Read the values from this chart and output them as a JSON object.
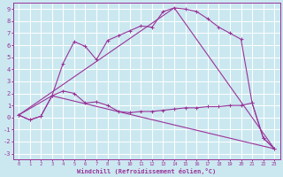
{
  "xlabel": "Windchill (Refroidissement éolien,°C)",
  "bg_color": "#cbe8f0",
  "grid_color": "#ffffff",
  "line_color": "#993399",
  "xlim": [
    -0.5,
    23.5
  ],
  "ylim": [
    -3.5,
    9.5
  ],
  "xticks": [
    0,
    1,
    2,
    3,
    4,
    5,
    6,
    7,
    8,
    9,
    10,
    11,
    12,
    13,
    14,
    15,
    16,
    17,
    18,
    19,
    20,
    21,
    22,
    23
  ],
  "yticks": [
    -3,
    -2,
    -1,
    0,
    1,
    2,
    3,
    4,
    5,
    6,
    7,
    8,
    9
  ],
  "line1_x": [
    0,
    1,
    2,
    3,
    4,
    5,
    6,
    7,
    8,
    9,
    10,
    11,
    12,
    13,
    14,
    15,
    16,
    17,
    18,
    19,
    20,
    21,
    22,
    23
  ],
  "line1_y": [
    0.2,
    -0.2,
    0.1,
    1.8,
    4.5,
    6.3,
    5.9,
    4.8,
    6.4,
    6.8,
    7.2,
    7.6,
    7.5,
    8.8,
    9.1,
    9.0,
    8.8,
    8.2,
    7.5,
    7.0,
    6.5,
    1.2,
    -1.7,
    -2.6
  ],
  "line2_x": [
    0,
    1,
    2,
    3,
    4,
    5,
    6,
    7,
    8,
    9,
    10,
    11,
    12,
    13,
    14,
    15,
    16,
    17,
    18,
    19,
    20,
    21,
    22,
    23
  ],
  "line2_y": [
    0.2,
    -0.2,
    0.1,
    1.8,
    2.2,
    2.0,
    1.2,
    1.3,
    1.0,
    0.5,
    0.4,
    0.5,
    0.5,
    0.6,
    0.7,
    0.8,
    0.8,
    0.9,
    0.9,
    1.0,
    1.0,
    1.2,
    -1.7,
    -2.6
  ],
  "line3_x": [
    0,
    3,
    23
  ],
  "line3_y": [
    0.2,
    1.8,
    -2.6
  ],
  "line4_x": [
    0,
    14,
    23
  ],
  "line4_y": [
    0.2,
    9.1,
    -2.6
  ]
}
